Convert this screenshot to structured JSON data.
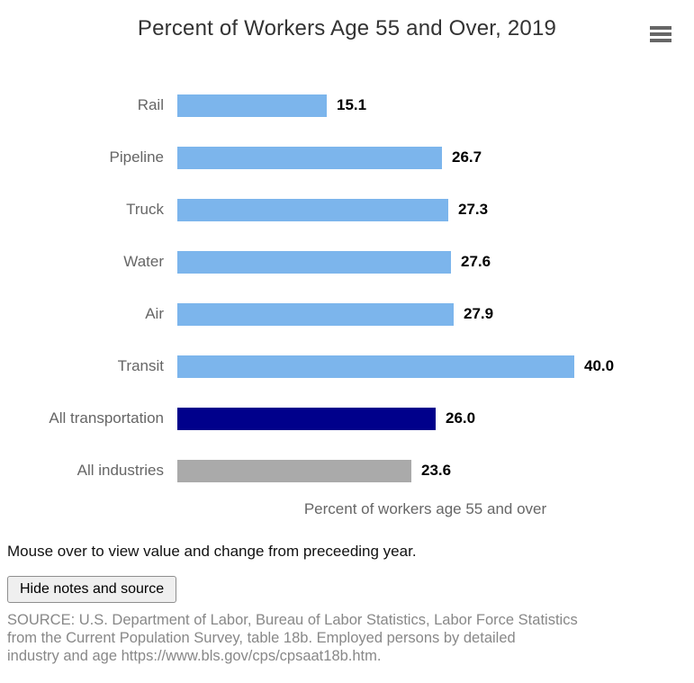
{
  "chart": {
    "title": "Percent of Workers Age 55 and Over, 2019"
  },
  "chart_data": {
    "type": "bar",
    "orientation": "horizontal",
    "title": "Percent of Workers Age 55 and Over, 2019",
    "categories": [
      "Rail",
      "Pipeline",
      "Truck",
      "Water",
      "Air",
      "Transit",
      "All transportation",
      "All industries"
    ],
    "values": [
      15.1,
      26.7,
      27.3,
      27.6,
      27.9,
      40.0,
      26.0,
      23.6
    ],
    "value_labels": [
      "15.1",
      "26.7",
      "27.3",
      "27.6",
      "27.9",
      "40.0",
      "26.0",
      "23.6"
    ],
    "bar_colors": [
      "#7cb5ec",
      "#7cb5ec",
      "#7cb5ec",
      "#7cb5ec",
      "#7cb5ec",
      "#7cb5ec",
      "#00008b",
      "#aaaaaa"
    ],
    "xlabel": "Percent of workers age 55 and over",
    "xlim": [
      0,
      50
    ],
    "grid": false,
    "legend": false
  },
  "footer": {
    "note": "Mouse over to view value and change from preceeding year.",
    "button_label": "Hide notes and source",
    "source_lines": [
      "SOURCE: U.S. Department of Labor, Bureau of Labor Statistics, Labor Force Statistics",
      "from the Current Population Survey, table 18b. Employed persons by detailed",
      "industry and age https://www.bls.gov/cps/cpsaat18b.htm."
    ]
  },
  "colors": {
    "accent_blue": "#7cb5ec",
    "navy": "#00008b",
    "gray_bar": "#aaaaaa",
    "title_text": "#333333",
    "label_text": "#666666",
    "source_text": "#888888"
  }
}
